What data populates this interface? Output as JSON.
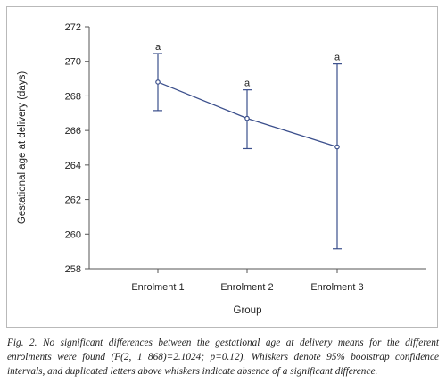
{
  "chart_data": {
    "type": "line",
    "ylabel": "Gestational age at delivery (days)",
    "xlabel": "Group",
    "categories": [
      "Enrolment 1",
      "Enrolment 2",
      "Enrolment 3"
    ],
    "series": [
      {
        "values": [
          268.8,
          266.7,
          265.05
        ],
        "ci_lower": [
          267.15,
          264.95,
          259.15
        ],
        "ci_upper": [
          270.45,
          268.35,
          269.85
        ],
        "significance_letters": [
          "a",
          "a",
          "a"
        ]
      }
    ],
    "ylim": [
      258,
      272
    ],
    "yticks": [
      258,
      260,
      262,
      264,
      266,
      268,
      270,
      272
    ],
    "grid": false,
    "colors": {
      "line": "#3b4f8c",
      "axis": "#555555"
    }
  },
  "caption": "Fig. 2. No significant differences between the gestational age at delivery means for the different enrolments were found (F(2, 1 868)=2.1024; p=0.12). Whiskers denote 95% bootstrap confidence intervals, and duplicated letters above whiskers indicate absence of a significant difference."
}
